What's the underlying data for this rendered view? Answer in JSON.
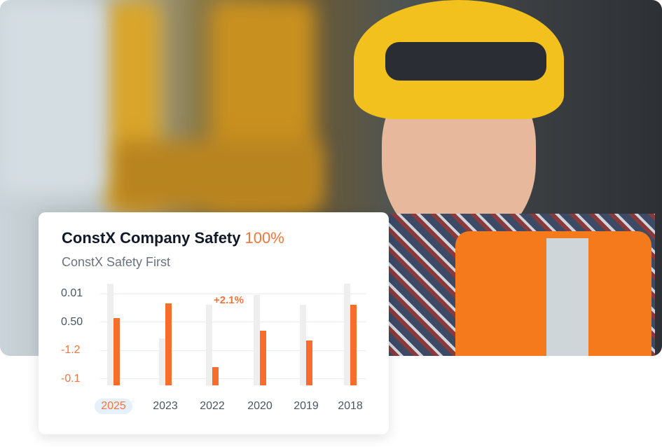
{
  "card": {
    "title": "ConstX Company Safety",
    "title_value": "100%",
    "subtitle": "ConstX Safety First"
  },
  "chart_data": {
    "type": "bar",
    "categories": [
      "2025",
      "2023",
      "2022",
      "2020",
      "2019",
      "2018"
    ],
    "active_category": "2025",
    "y_tick_labels": [
      "0.01",
      "0.50",
      "-1.2",
      "-0.1"
    ],
    "series": [
      {
        "values_fraction_of_max": [
          0.66,
          0.81,
          0.18,
          0.54,
          0.44,
          0.79
        ],
        "color": "#f76d2c"
      },
      {
        "values_fraction_of_max": [
          1.0,
          0.46,
          0.79,
          0.89,
          0.79,
          1.0
        ],
        "color": "#eeeeee"
      }
    ],
    "annotation": "+2.1%",
    "grid": true
  },
  "colors": {
    "accent": "#f5743a",
    "title": "#111827"
  }
}
